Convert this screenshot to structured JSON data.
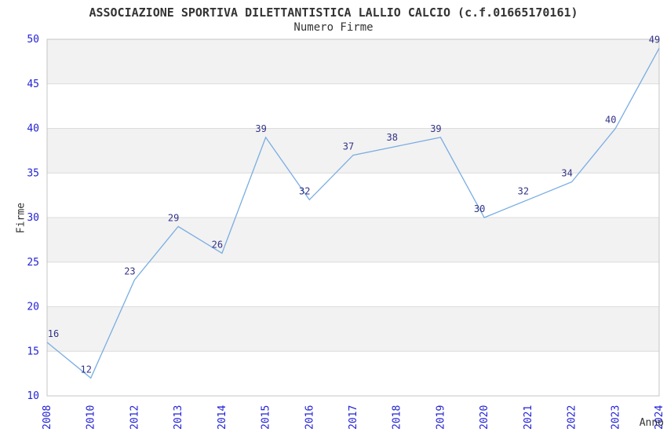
{
  "chart_data": {
    "type": "line",
    "title": "ASSOCIAZIONE SPORTIVA DILETTANTISTICA LALLIO CALCIO (c.f.01665170161)",
    "subtitle": "Numero Firme",
    "xlabel": "Anno",
    "ylabel": "Firme",
    "categories": [
      "2008",
      "2010",
      "2012",
      "2013",
      "2014",
      "2015",
      "2016",
      "2017",
      "2018",
      "2019",
      "2020",
      "2021",
      "2022",
      "2023",
      "2024"
    ],
    "values": [
      16,
      12,
      23,
      29,
      26,
      39,
      32,
      37,
      38,
      39,
      30,
      32,
      34,
      40,
      49
    ],
    "ylim": [
      10,
      50
    ],
    "y_ticks": [
      10,
      15,
      20,
      25,
      30,
      35,
      40,
      45,
      50
    ],
    "grid": "horizontal bands, alternating gray/white every 5 units, gray topmost",
    "legend_position": "none",
    "colors": {
      "line": "#79ade2",
      "tick_label": "#2222d5",
      "data_label": "#333388",
      "band_gray": "#f2f2f2",
      "gridline": "#dcdcdc",
      "plot_border": "#c4c4c4",
      "text": "#333333",
      "background": "#ffffff"
    }
  }
}
